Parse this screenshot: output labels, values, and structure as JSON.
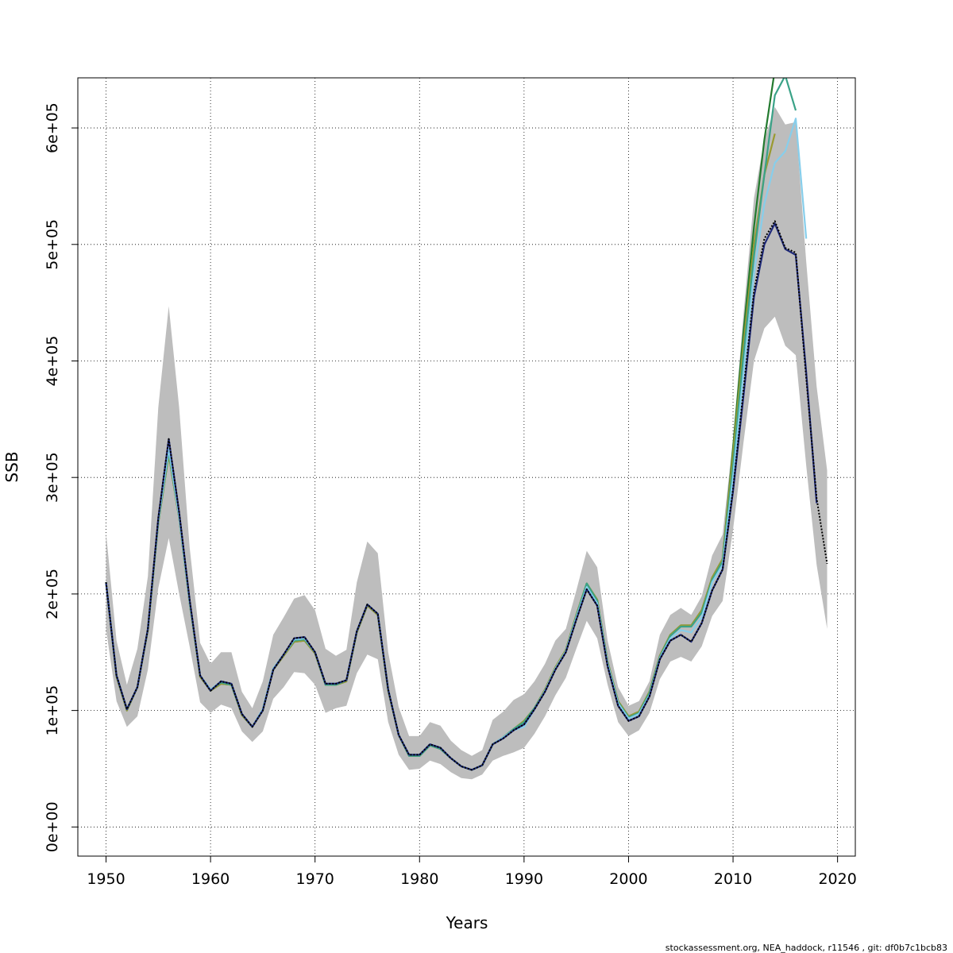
{
  "chart_data": {
    "type": "line",
    "xlabel": "Years",
    "ylabel": "SSB",
    "xlim": [
      1947.3,
      2021.7
    ],
    "ylim": [
      -25000,
      643000
    ],
    "x_ticks": [
      1950,
      1960,
      1970,
      1980,
      1990,
      2000,
      2010,
      2020
    ],
    "y_ticks": [
      0,
      100000,
      200000,
      300000,
      400000,
      500000,
      600000
    ],
    "x_tick_labels": [
      "1950",
      "1960",
      "1970",
      "1980",
      "1990",
      "2000",
      "2010",
      "2020"
    ],
    "y_tick_labels": [
      "0e+00",
      "1e+05",
      "2e+05",
      "3e+05",
      "4e+05",
      "5e+05",
      "6e+05"
    ],
    "grid": true,
    "caption": "stockassessment.org, NEA_haddock, r11546 , git: df0b7c1bcb83",
    "confidence_band": {
      "x": [
        1950,
        1951,
        1952,
        1953,
        1954,
        1955,
        1956,
        1957,
        1958,
        1959,
        1960,
        1961,
        1962,
        1963,
        1964,
        1965,
        1966,
        1967,
        1968,
        1969,
        1970,
        1971,
        1972,
        1973,
        1974,
        1975,
        1976,
        1977,
        1978,
        1979,
        1980,
        1981,
        1982,
        1983,
        1984,
        1985,
        1986,
        1987,
        1988,
        1989,
        1990,
        1991,
        1992,
        1993,
        1994,
        1995,
        1996,
        1997,
        1998,
        1999,
        2000,
        2001,
        2002,
        2003,
        2004,
        2005,
        2006,
        2007,
        2008,
        2009,
        2010,
        2011,
        2012,
        2013,
        2014,
        2015,
        2016,
        2017,
        2018,
        2019
      ],
      "lower": [
        170000,
        108000,
        86000,
        95000,
        135000,
        205000,
        248000,
        200000,
        155000,
        107000,
        98000,
        105000,
        102000,
        82000,
        73000,
        82000,
        110000,
        120000,
        133000,
        132000,
        122000,
        98000,
        102000,
        104000,
        132000,
        148000,
        144000,
        90000,
        62000,
        49000,
        50000,
        57000,
        54000,
        47000,
        42000,
        41000,
        45000,
        57000,
        61000,
        64000,
        68000,
        80000,
        95000,
        113000,
        128000,
        153000,
        177000,
        162000,
        122000,
        90000,
        78000,
        83000,
        98000,
        127000,
        142000,
        146000,
        142000,
        155000,
        181000,
        194000,
        255000,
        330000,
        400000,
        428000,
        438000,
        413000,
        405000,
        310000,
        225000,
        170000
      ],
      "upper": [
        253000,
        160000,
        122000,
        153000,
        215000,
        360000,
        447000,
        360000,
        240000,
        158000,
        140000,
        150000,
        150000,
        116000,
        102000,
        125000,
        165000,
        180000,
        196000,
        199000,
        186000,
        153000,
        147000,
        152000,
        210000,
        245000,
        235000,
        150000,
        103000,
        78000,
        78000,
        90000,
        87000,
        74000,
        66000,
        61000,
        66000,
        92000,
        99000,
        109000,
        114000,
        125000,
        140000,
        160000,
        170000,
        203000,
        237000,
        223000,
        160000,
        120000,
        104000,
        108000,
        125000,
        165000,
        182000,
        188000,
        182000,
        198000,
        233000,
        251000,
        333000,
        440000,
        540000,
        590000,
        618000,
        603000,
        605000,
        485000,
        378000,
        306000
      ]
    },
    "series": [
      {
        "color": "#000000",
        "style": "dotted",
        "x": [
          1950,
          1951,
          1952,
          1953,
          1954,
          1955,
          1956,
          1957,
          1958,
          1959,
          1960,
          1961,
          1962,
          1963,
          1964,
          1965,
          1966,
          1967,
          1968,
          1969,
          1970,
          1971,
          1972,
          1973,
          1974,
          1975,
          1976,
          1977,
          1978,
          1979,
          1980,
          1981,
          1982,
          1983,
          1984,
          1985,
          1986,
          1987,
          1988,
          1989,
          1990,
          1991,
          1992,
          1993,
          1994,
          1995,
          1996,
          1997,
          1998,
          1999,
          2000,
          2001,
          2002,
          2003,
          2004,
          2005,
          2006,
          2007,
          2008,
          2009,
          2010,
          2011,
          2012,
          2013,
          2014,
          2015,
          2016,
          2017,
          2018,
          2019
        ],
        "values": [
          210000,
          130000,
          101000,
          120000,
          170000,
          265000,
          333000,
          270000,
          195000,
          130000,
          117000,
          125000,
          123000,
          97000,
          86000,
          100000,
          135000,
          148000,
          162000,
          163000,
          150000,
          123000,
          123000,
          126000,
          168000,
          191000,
          183000,
          118000,
          79000,
          62000,
          62000,
          71000,
          68000,
          59000,
          52000,
          49000,
          53000,
          71000,
          76000,
          83000,
          88000,
          101000,
          116000,
          135000,
          150000,
          178000,
          204000,
          190000,
          138000,
          104000,
          91000,
          95000,
          112000,
          144000,
          160000,
          165000,
          159000,
          175000,
          203000,
          221000,
          290000,
          375000,
          460000,
          505000,
          520000,
          497000,
          493000,
          385000,
          282000,
          226000
        ]
      },
      {
        "color": "#1f2a7a",
        "style": "solid",
        "x": [
          1950,
          1951,
          1952,
          1953,
          1954,
          1955,
          1956,
          1957,
          1958,
          1959,
          1960,
          1961,
          1962,
          1963,
          1964,
          1965,
          1966,
          1967,
          1968,
          1969,
          1970,
          1971,
          1972,
          1973,
          1974,
          1975,
          1976,
          1977,
          1978,
          1979,
          1980,
          1981,
          1982,
          1983,
          1984,
          1985,
          1986,
          1987,
          1988,
          1989,
          1990,
          1991,
          1992,
          1993,
          1994,
          1995,
          1996,
          1997,
          1998,
          1999,
          2000,
          2001,
          2002,
          2003,
          2004,
          2005,
          2006,
          2007,
          2008,
          2009,
          2010,
          2011,
          2012,
          2013,
          2014,
          2015,
          2016,
          2017,
          2018
        ],
        "values": [
          210000,
          130000,
          101000,
          120000,
          170000,
          265000,
          333000,
          270000,
          195000,
          130000,
          117000,
          125000,
          123000,
          97000,
          86000,
          100000,
          135000,
          148000,
          162000,
          163000,
          150000,
          123000,
          123000,
          126000,
          168000,
          191000,
          183000,
          118000,
          79000,
          62000,
          62000,
          71000,
          68000,
          59000,
          52000,
          49000,
          53000,
          71000,
          76000,
          83000,
          88000,
          101000,
          116000,
          135000,
          150000,
          178000,
          204000,
          190000,
          138000,
          104000,
          91000,
          95000,
          112000,
          144000,
          160000,
          165000,
          159000,
          175000,
          203000,
          221000,
          288000,
          370000,
          455000,
          500000,
          518000,
          496000,
          491000,
          390000,
          278000
        ]
      },
      {
        "color": "#87ceeb",
        "style": "solid",
        "x": [
          1950,
          1951,
          1952,
          1953,
          1954,
          1955,
          1956,
          1957,
          1958,
          1959,
          1960,
          1961,
          1962,
          1963,
          1964,
          1965,
          1966,
          1967,
          1968,
          1969,
          1970,
          1971,
          1972,
          1973,
          1974,
          1975,
          1976,
          1977,
          1978,
          1979,
          1980,
          1981,
          1982,
          1983,
          1984,
          1985,
          1986,
          1987,
          1988,
          1989,
          1990,
          1991,
          1992,
          1993,
          1994,
          1995,
          1996,
          1997,
          1998,
          1999,
          2000,
          2001,
          2002,
          2003,
          2004,
          2005,
          2006,
          2007,
          2008,
          2009,
          2010,
          2011,
          2012,
          2013,
          2014,
          2015,
          2016,
          2017
        ],
        "values": [
          210000,
          130000,
          101000,
          120000,
          170000,
          263000,
          325000,
          266000,
          193000,
          130000,
          118000,
          125000,
          123000,
          97000,
          86000,
          101000,
          136000,
          148000,
          161000,
          162000,
          150000,
          123000,
          123000,
          126000,
          168000,
          191000,
          183000,
          118000,
          79000,
          62000,
          62000,
          71000,
          68000,
          59000,
          52000,
          49000,
          53000,
          71000,
          77000,
          83000,
          86000,
          101000,
          117000,
          136000,
          151000,
          180000,
          206000,
          192000,
          140000,
          106000,
          93000,
          97000,
          113000,
          145000,
          162000,
          169000,
          167000,
          180000,
          210000,
          225000,
          300000,
          390000,
          475000,
          535000,
          570000,
          580000,
          608000,
          505000
        ]
      },
      {
        "color": "#3aa287",
        "style": "solid",
        "x": [
          1950,
          1951,
          1952,
          1953,
          1954,
          1955,
          1956,
          1957,
          1958,
          1959,
          1960,
          1961,
          1962,
          1963,
          1964,
          1965,
          1966,
          1967,
          1968,
          1969,
          1970,
          1971,
          1972,
          1973,
          1974,
          1975,
          1976,
          1977,
          1978,
          1979,
          1980,
          1981,
          1982,
          1983,
          1984,
          1985,
          1986,
          1987,
          1988,
          1989,
          1990,
          1991,
          1992,
          1993,
          1994,
          1995,
          1996,
          1997,
          1998,
          1999,
          2000,
          2001,
          2002,
          2003,
          2004,
          2005,
          2006,
          2007,
          2008,
          2009,
          2010,
          2011,
          2012,
          2013,
          2014,
          2015,
          2016
        ],
        "values": [
          210000,
          130000,
          101000,
          120000,
          170000,
          262000,
          322000,
          266000,
          193000,
          130000,
          118000,
          124000,
          122000,
          97000,
          86000,
          101000,
          136000,
          148000,
          160000,
          161000,
          150000,
          122000,
          122000,
          126000,
          168000,
          191000,
          183000,
          118000,
          79000,
          61000,
          61000,
          70000,
          67000,
          59000,
          52000,
          49000,
          53000,
          71000,
          77000,
          84000,
          90000,
          102000,
          117000,
          136000,
          151000,
          181000,
          209000,
          194000,
          141000,
          107000,
          94000,
          98000,
          115000,
          146000,
          164000,
          172000,
          172000,
          184000,
          212000,
          228000,
          310000,
          405000,
          490000,
          560000,
          628000,
          645000,
          615000
        ]
      },
      {
        "color": "#9a9a30",
        "style": "solid",
        "x": [
          1950,
          1951,
          1952,
          1953,
          1954,
          1955,
          1956,
          1957,
          1958,
          1959,
          1960,
          1961,
          1962,
          1963,
          1964,
          1965,
          1966,
          1967,
          1968,
          1969,
          1970,
          1971,
          1972,
          1973,
          1974,
          1975,
          1976,
          1977,
          1978,
          1979,
          1980,
          1981,
          1982,
          1983,
          1984,
          1985,
          1986,
          1987,
          1988,
          1989,
          1990,
          1991,
          1992,
          1993,
          1994,
          1995,
          1996,
          1997,
          1998,
          1999,
          2000,
          2001,
          2002,
          2003,
          2004,
          2005,
          2006,
          2007,
          2008,
          2009,
          2010,
          2011,
          2012,
          2013,
          2014
        ],
        "values": [
          210000,
          129000,
          100000,
          120000,
          169000,
          261000,
          320000,
          265000,
          192000,
          129000,
          117000,
          123000,
          122000,
          96000,
          86000,
          100000,
          135000,
          147000,
          159000,
          160000,
          149000,
          122000,
          122000,
          125000,
          167000,
          190000,
          182000,
          117000,
          79000,
          61000,
          61000,
          70000,
          67000,
          59000,
          52000,
          49000,
          53000,
          71000,
          77000,
          84000,
          91000,
          102000,
          118000,
          137000,
          152000,
          182000,
          209000,
          195000,
          142000,
          108000,
          95000,
          99000,
          116000,
          147000,
          165000,
          173000,
          173000,
          186000,
          214000,
          230000,
          320000,
          415000,
          500000,
          560000,
          595000
        ]
      },
      {
        "color": "#237a2f",
        "style": "solid",
        "x": [
          1950,
          1951,
          1952,
          1953,
          1954,
          1955,
          1956,
          1957,
          1958,
          1959,
          1960,
          1961,
          1962,
          1963,
          1964,
          1965,
          1966,
          1967,
          1968,
          1969,
          1970,
          1971,
          1972,
          1973,
          1974,
          1975,
          1976,
          1977,
          1978,
          1979,
          1980,
          1981,
          1982,
          1983,
          1984,
          1985,
          1986,
          1987,
          1988,
          1989,
          1990,
          1991,
          1992,
          1993,
          1994,
          1995,
          1996,
          1997,
          1998,
          1999,
          2000,
          2001,
          2002,
          2003,
          2004,
          2005,
          2006,
          2007,
          2008,
          2009,
          2010,
          2011,
          2012,
          2013,
          2014
        ],
        "values": [
          210000,
          129000,
          100000,
          120000,
          169000,
          261000,
          320000,
          265000,
          192000,
          129000,
          117000,
          123000,
          122000,
          96000,
          86000,
          100000,
          135000,
          147000,
          159000,
          160000,
          149000,
          122000,
          122000,
          125000,
          167000,
          190000,
          182000,
          117000,
          79000,
          61000,
          61000,
          70000,
          67000,
          59000,
          52000,
          49000,
          53000,
          71000,
          77000,
          84000,
          91000,
          102000,
          118000,
          137000,
          152000,
          182000,
          209000,
          195000,
          142000,
          108000,
          95000,
          99000,
          116000,
          147000,
          165000,
          173000,
          173000,
          186000,
          214000,
          230000,
          325000,
          425000,
          515000,
          590000,
          650000
        ]
      }
    ]
  }
}
